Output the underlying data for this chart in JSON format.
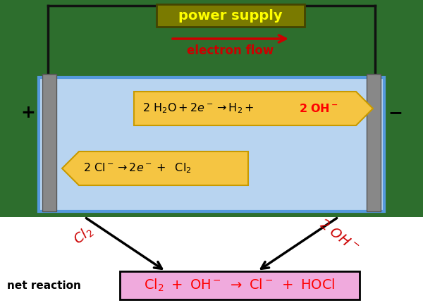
{
  "bg_color": "#ffffff",
  "outer_bg": "#2d6e2d",
  "tank_color": "#b8d4f0",
  "tank_border": "#5599dd",
  "power_supply_bg": "#7a7a00",
  "power_supply_text": "power supply",
  "power_supply_text_color": "#ffff00",
  "electron_flow_text": "electron flow",
  "electron_flow_color": "#cc0000",
  "electrode_color": "#888888",
  "electrode_edge": "#555555",
  "reaction_box_fill": "#f5c542",
  "reaction_box_edge": "#c89a00",
  "net_reaction_bg": "#f0aadd",
  "net_reaction_border": "#000000",
  "annotation_color": "#cc0000",
  "arrow_color": "#000000",
  "wire_color": "#111111",
  "label_plus": "+",
  "label_minus": "−"
}
